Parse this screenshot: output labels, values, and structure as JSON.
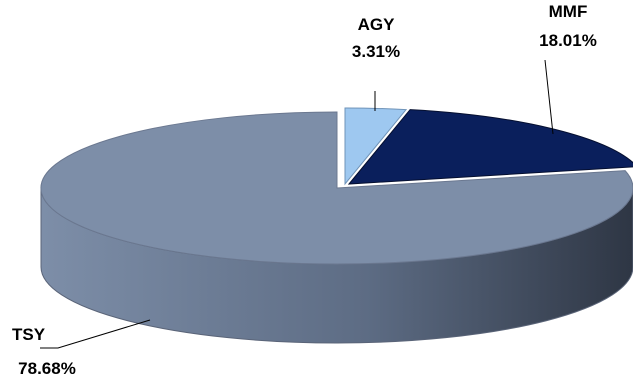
{
  "chart_data": {
    "type": "pie",
    "slices": [
      {
        "label": "AGY",
        "value": 3.31,
        "value_label": "3.31%",
        "color": "#9ec8f0"
      },
      {
        "label": "MMF",
        "value": 18.01,
        "value_label": "18.01%",
        "color": "#0a1f5c"
      },
      {
        "label": "TSY",
        "value": 78.68,
        "value_label": "78.68%",
        "color": "#7d8ea8"
      }
    ],
    "style": "3d-pie",
    "legend": "none"
  }
}
